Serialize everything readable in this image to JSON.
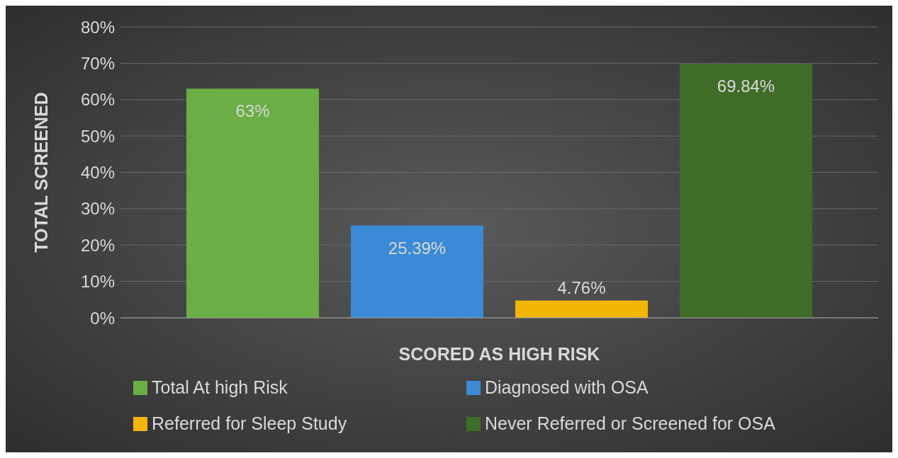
{
  "chart_data": {
    "type": "bar",
    "xlabel": "SCORED AS HIGH RISK",
    "ylabel": "TOTAL SCREENED",
    "categories": [
      null
    ],
    "series": [
      {
        "name": "Total At high Risk",
        "color": "#6aae45",
        "values": [
          63
        ],
        "value_labels": [
          "63%"
        ]
      },
      {
        "name": "Diagnosed with OSA",
        "color": "#3a8ad6",
        "values": [
          25.39
        ],
        "value_labels": [
          "25.39%"
        ]
      },
      {
        "name": "Referred for Sleep Study",
        "color": "#f2b705",
        "values": [
          4.76
        ],
        "value_labels": [
          "4.76%"
        ]
      },
      {
        "name": "Never Referred or Screened for OSA",
        "color": "#3f6d28",
        "values": [
          69.84
        ],
        "value_labels": [
          "69.84%"
        ]
      }
    ],
    "ylim": [
      0,
      80
    ],
    "yticks": [
      {
        "value": 0,
        "label": "0%"
      },
      {
        "value": 10,
        "label": "10%"
      },
      {
        "value": 20,
        "label": "20%"
      },
      {
        "value": 30,
        "label": "30%"
      },
      {
        "value": 40,
        "label": "40%"
      },
      {
        "value": 50,
        "label": "50%"
      },
      {
        "value": 60,
        "label": "60%"
      },
      {
        "value": 70,
        "label": "70%"
      },
      {
        "value": 80,
        "label": "80%"
      }
    ],
    "grid": "y",
    "legend": "bottom"
  }
}
